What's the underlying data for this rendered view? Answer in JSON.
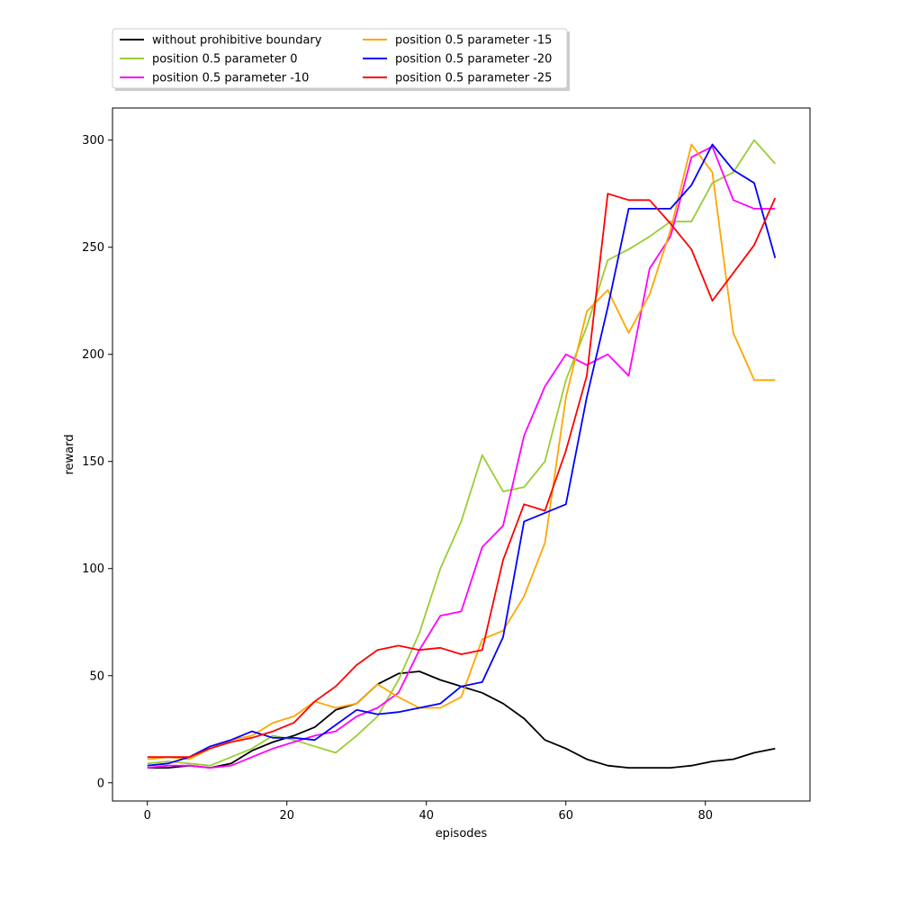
{
  "chart_data": {
    "type": "line",
    "xlabel": "episodes",
    "ylabel": "reward",
    "xlim": [
      -5,
      95
    ],
    "ylim": [
      -8.5,
      315
    ],
    "xticks": [
      0,
      20,
      40,
      60,
      80
    ],
    "yticks": [
      0,
      50,
      100,
      150,
      200,
      250,
      300
    ],
    "grid": false,
    "legend_position": "top-left, above plot",
    "series": [
      {
        "name": "without prohibitive boundary",
        "color": "#000000",
        "x": [
          0,
          3,
          6,
          9,
          12,
          15,
          18,
          21,
          24,
          27,
          30,
          33,
          36,
          39,
          42,
          45,
          48,
          51,
          54,
          57,
          60,
          63,
          66,
          69,
          72,
          75,
          78,
          81,
          84,
          87,
          90
        ],
        "values": [
          7,
          7,
          8,
          7,
          9,
          15,
          19,
          22,
          26,
          34,
          37,
          46,
          51,
          52,
          48,
          45,
          42,
          37,
          30,
          20,
          16,
          11,
          8,
          7,
          7,
          7,
          8,
          10,
          11,
          14,
          16
        ]
      },
      {
        "name": "position 0.5 parameter 0",
        "color": "#9ACD32",
        "x": [
          0,
          3,
          6,
          9,
          12,
          15,
          18,
          21,
          24,
          27,
          30,
          33,
          36,
          39,
          42,
          45,
          48,
          51,
          54,
          57,
          60,
          63,
          66,
          69,
          72,
          75,
          78,
          81,
          84,
          87,
          90
        ],
        "values": [
          9,
          10,
          9,
          8,
          12,
          16,
          22,
          20,
          17,
          14,
          22,
          31,
          48,
          70,
          100,
          122,
          153,
          136,
          138,
          150,
          188,
          213,
          244,
          249,
          255,
          262,
          262,
          280,
          285,
          300,
          289
        ]
      },
      {
        "name": "position 0.5 parameter -10",
        "color": "#FF00FF",
        "x": [
          0,
          3,
          6,
          9,
          12,
          15,
          18,
          21,
          24,
          27,
          30,
          33,
          36,
          39,
          42,
          45,
          48,
          51,
          54,
          57,
          60,
          63,
          66,
          69,
          72,
          75,
          78,
          81,
          84,
          87,
          90
        ],
        "values": [
          7,
          8,
          8,
          7,
          8,
          12,
          16,
          19,
          22,
          24,
          31,
          35,
          42,
          62,
          78,
          80,
          110,
          120,
          162,
          185,
          200,
          195,
          200,
          190,
          240,
          255,
          292,
          297,
          272,
          268,
          268
        ]
      },
      {
        "name": "position 0.5 parameter -15",
        "color": "#FFA500",
        "x": [
          0,
          3,
          6,
          9,
          12,
          15,
          18,
          21,
          24,
          27,
          30,
          33,
          36,
          39,
          42,
          45,
          48,
          51,
          54,
          57,
          60,
          63,
          66,
          69,
          72,
          75,
          78,
          81,
          84,
          87,
          90
        ],
        "values": [
          11,
          12,
          11,
          16,
          20,
          22,
          28,
          31,
          38,
          35,
          37,
          46,
          40,
          35,
          35,
          40,
          67,
          71,
          87,
          112,
          180,
          220,
          230,
          210,
          228,
          258,
          298,
          285,
          210,
          188,
          188
        ]
      },
      {
        "name": "position 0.5 parameter -20",
        "color": "#0000FF",
        "x": [
          0,
          3,
          6,
          9,
          12,
          15,
          18,
          21,
          24,
          27,
          30,
          33,
          36,
          39,
          42,
          45,
          48,
          51,
          54,
          57,
          60,
          63,
          66,
          69,
          72,
          75,
          78,
          81,
          84,
          87,
          90
        ],
        "values": [
          8,
          9,
          12,
          17,
          20,
          24,
          21,
          21,
          20,
          27,
          34,
          32,
          33,
          35,
          37,
          45,
          47,
          68,
          122,
          126,
          130,
          180,
          222,
          268,
          268,
          268,
          279,
          298,
          286,
          280,
          245
        ]
      },
      {
        "name": "position 0.5 parameter -25",
        "color": "#FF0000",
        "x": [
          0,
          3,
          6,
          9,
          12,
          15,
          18,
          21,
          24,
          27,
          30,
          33,
          36,
          39,
          42,
          45,
          48,
          51,
          54,
          57,
          60,
          63,
          66,
          69,
          72,
          75,
          78,
          81,
          84,
          87,
          90
        ],
        "values": [
          12,
          12,
          12,
          16,
          19,
          21,
          24,
          28,
          38,
          45,
          55,
          62,
          64,
          62,
          63,
          60,
          62,
          104,
          130,
          127,
          155,
          190,
          275,
          272,
          272,
          261,
          249,
          225,
          238,
          251,
          273
        ]
      }
    ]
  },
  "colors": {
    "axis": "#000000",
    "background": "#ffffff",
    "legend_border": "#cccccc"
  }
}
